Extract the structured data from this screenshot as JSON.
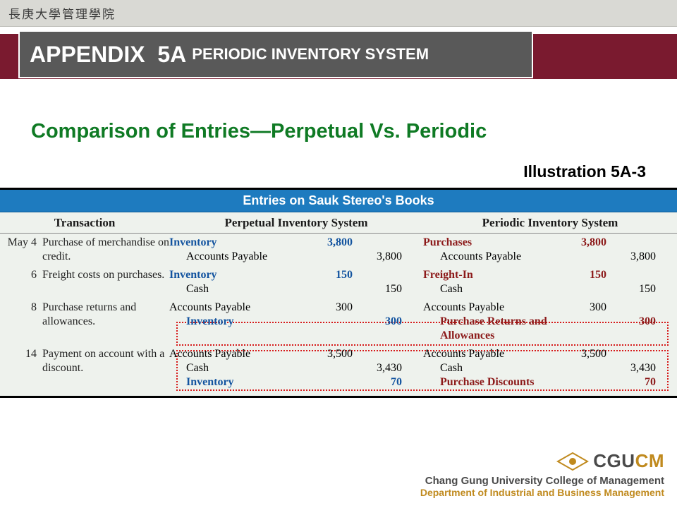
{
  "top_strip": "長庚大學管理學院",
  "title": {
    "main": "APPENDIX  5A",
    "sub": "PERIODIC INVENTORY SYSTEM"
  },
  "subtitle": "Comparison of Entries—Perpetual Vs. Periodic",
  "illustration_label": "Illustration 5A-3",
  "colors": {
    "top_strip_bg": "#d9d9d4",
    "accent_bar": "#7a1a2f",
    "title_box_bg": "#595959",
    "subtitle_color": "#0f7a24",
    "table_header_bg": "#1e7bbf",
    "table_body_bg": "#eef2ed",
    "blue_bold": "#12539f",
    "red_bold": "#8c1a1a",
    "dotted_border": "#d61a1a",
    "logo_gold": "#c08a1e"
  },
  "fonts": {
    "title_family": "Arial",
    "title_size_pt": 24,
    "subtitle_size_pt": 22,
    "body_family": "Times New Roman",
    "body_size_pt": 12
  },
  "figure": {
    "header": "Entries on Sauk Stereo's Books",
    "columns": [
      "Transaction",
      "Perpetual Inventory System",
      "Periodic Inventory System"
    ],
    "rows": [
      {
        "date": "May  4",
        "transaction": "Purchase of merchandise on credit.",
        "perpetual": [
          {
            "account": "Inventory",
            "style": "blue-b",
            "debit": "3,800",
            "credit": ""
          },
          {
            "account": "Accounts Payable",
            "indent": true,
            "debit": "",
            "credit": "3,800"
          }
        ],
        "periodic": [
          {
            "account": "Purchases",
            "style": "red-b",
            "debit": "3,800",
            "credit": ""
          },
          {
            "account": "Accounts Payable",
            "indent": true,
            "debit": "",
            "credit": "3,800"
          }
        ]
      },
      {
        "date": "6",
        "transaction": "Freight costs on purchases.",
        "perpetual": [
          {
            "account": "Inventory",
            "style": "blue-b",
            "debit": "150",
            "credit": ""
          },
          {
            "account": "Cash",
            "indent": true,
            "debit": "",
            "credit": "150"
          }
        ],
        "periodic": [
          {
            "account": "Freight-In",
            "style": "red-b",
            "debit": "150",
            "credit": ""
          },
          {
            "account": "Cash",
            "indent": true,
            "debit": "",
            "credit": "150"
          }
        ]
      },
      {
        "date": "8",
        "transaction": "Purchase returns and allowances.",
        "perpetual": [
          {
            "account": "Accounts Payable",
            "debit": "300",
            "credit": ""
          },
          {
            "account": "Inventory",
            "style": "blue-b",
            "indent": true,
            "debit": "",
            "credit": "300"
          }
        ],
        "periodic": [
          {
            "account": "Accounts Payable",
            "debit": "300",
            "credit": ""
          },
          {
            "account": "Purchase Returns and Allowances",
            "style": "red-b",
            "indent": true,
            "debit": "",
            "credit": "300"
          }
        ]
      },
      {
        "date": "14",
        "transaction": "Payment on account with a discount.",
        "perpetual": [
          {
            "account": "Accounts Payable",
            "debit": "3,500",
            "credit": ""
          },
          {
            "account": "Cash",
            "indent": true,
            "debit": "",
            "credit": "3,430"
          },
          {
            "account": "Inventory",
            "style": "blue-b",
            "indent": true,
            "debit": "",
            "credit": "70"
          }
        ],
        "periodic": [
          {
            "account": "Accounts Payable",
            "debit": "3,500",
            "credit": ""
          },
          {
            "account": "Cash",
            "indent": true,
            "debit": "",
            "credit": "3,430"
          },
          {
            "account": "Purchase Discounts",
            "style": "red-b",
            "indent": true,
            "debit": "",
            "credit": "70"
          }
        ]
      }
    ]
  },
  "footer": {
    "logo_text_parts": [
      "CGU",
      "CM"
    ],
    "line1": "Chang Gung University College of Management",
    "line2": "Department of Industrial and Business Management"
  }
}
